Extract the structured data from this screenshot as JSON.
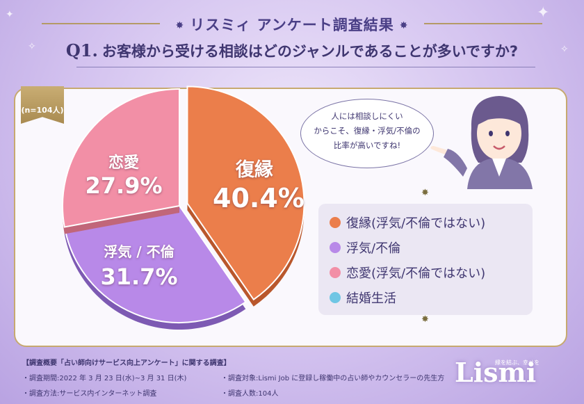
{
  "header": {
    "title": "リスミィ アンケート調査結果",
    "question_label": "Q1.",
    "question": "お客様から受ける相談はどのジャンルであることが多いですか?"
  },
  "sample_badge": "(n=104人)",
  "chart_data": {
    "type": "pie",
    "title": "お客様から受ける相談はどのジャンルであることが多いですか?",
    "slices": [
      {
        "short": "復縁",
        "legend": "復縁(浮気/不倫ではない)",
        "value": 40.4,
        "label": "40.4%",
        "color": "#eb7e4b"
      },
      {
        "short": "浮気 / 不倫",
        "legend": "浮気/不倫",
        "value": 31.7,
        "label": "31.7%",
        "color": "#b889e8"
      },
      {
        "short": "恋愛",
        "legend": "恋愛(浮気/不倫ではない)",
        "value": 27.9,
        "label": "27.9%",
        "color": "#f28fa6"
      },
      {
        "short": "",
        "legend": "結婚生活",
        "value": 0,
        "label": "",
        "color": "#6fc6e4"
      }
    ]
  },
  "speech": [
    "人には相談しにくい",
    "からこそ、復縁・浮気/不倫の",
    "比率が高いですね!"
  ],
  "footer": {
    "heading": "【調査概要「占い師向けサービス向上アンケート」に関する調査】",
    "period": "・調査期間:2022 年 3 月 23 日(水)~3 月 31 日(木)",
    "method": "・調査方法:サービス内インターネット調査",
    "target": "・調査対象:Lismi Job に登録し稼働中の占い師やカウンセラーの先生方",
    "count": "・調査人数:104人"
  },
  "brand": {
    "logo": "Lismi",
    "tagline": "縁を結ぶ、幸せを"
  }
}
